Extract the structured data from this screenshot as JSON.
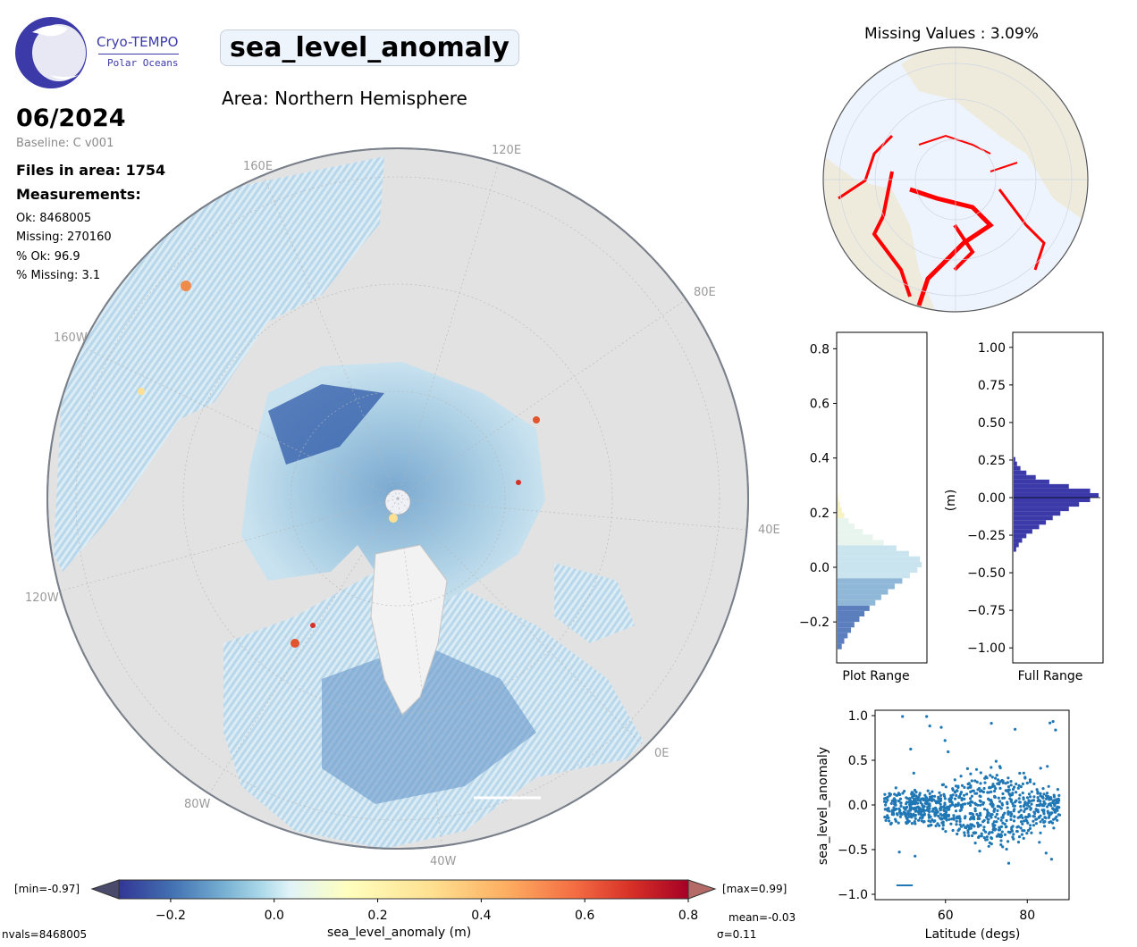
{
  "logo": {
    "line1": "Cryo-TEMPO",
    "line2": "Polar Oceans"
  },
  "title": "sea_level_anomaly",
  "area": "Area: Northern Hemisphere",
  "date": "06/2024",
  "baseline": "Baseline: C v001",
  "files": "Files in area: 1754",
  "measurements_heading": "Measurements:",
  "stats": {
    "ok": "Ok: 8468005",
    "missing": "Missing: 270160",
    "pct_ok": "% Ok: 96.9",
    "pct_missing": "% Missing: 3.1"
  },
  "map": {
    "lon_labels": [
      "120E",
      "160E",
      "80E",
      "160W",
      "40E",
      "120W",
      "0E",
      "80W",
      "40W"
    ],
    "colors": {
      "land": "#e6e6e6",
      "ocean_low": "#313695",
      "ocean_mid": "#abd9e9",
      "ocean_high": "#fee090",
      "hot": "#d73027"
    }
  },
  "inset": {
    "title": "Missing Values : 3.09%",
    "land_color": "#efebdc",
    "ocean_color": "#eef4fd",
    "missing_color": "#ff0000"
  },
  "colorbar": {
    "min_label": "[min=-0.97]",
    "max_label": "[max=0.99]",
    "label": "sea_level_anomaly (m)",
    "ticks": [
      "−0.2",
      "0.0",
      "0.2",
      "0.4",
      "0.6",
      "0.8"
    ],
    "range": [
      -0.3,
      0.8
    ],
    "mean": "mean=-0.03",
    "sigma": "σ=0.11",
    "nvals": "nvals=8468005"
  },
  "chart_data": [
    {
      "type": "bar",
      "orientation": "horizontal",
      "xlabel": "Plot Range",
      "ylim": [
        -0.35,
        0.86
      ],
      "yticks": [
        "−0.2",
        "0.0",
        "0.2",
        "0.4",
        "0.6",
        "0.8"
      ],
      "bins": [
        -0.3,
        -0.28,
        -0.26,
        -0.24,
        -0.22,
        -0.2,
        -0.18,
        -0.16,
        -0.14,
        -0.12,
        -0.1,
        -0.08,
        -0.06,
        -0.04,
        -0.02,
        0.0,
        0.02,
        0.04,
        0.06,
        0.08,
        0.1,
        0.12,
        0.14,
        0.16,
        0.18,
        0.2,
        0.22,
        0.24
      ],
      "values": [
        0.05,
        0.08,
        0.12,
        0.16,
        0.2,
        0.26,
        0.32,
        0.38,
        0.45,
        0.52,
        0.6,
        0.68,
        0.77,
        0.86,
        0.95,
        1.0,
        0.98,
        0.85,
        0.7,
        0.55,
        0.42,
        0.3,
        0.2,
        0.13,
        0.08,
        0.05,
        0.03,
        0.01
      ]
    },
    {
      "type": "bar",
      "orientation": "horizontal",
      "xlabel": "Full Range",
      "ylabel": "(m)",
      "ylim": [
        -1.1,
        1.1
      ],
      "yticks": [
        "1.00",
        "0.75",
        "0.50",
        "0.25",
        "0.00",
        "−0.25",
        "−0.50",
        "−0.75",
        "−1.00"
      ],
      "bins": [
        -0.36,
        -0.33,
        -0.3,
        -0.27,
        -0.24,
        -0.21,
        -0.18,
        -0.15,
        -0.12,
        -0.09,
        -0.06,
        -0.03,
        0.0,
        0.03,
        0.06,
        0.09,
        0.12,
        0.15,
        0.18,
        0.21,
        0.24
      ],
      "values": [
        0.03,
        0.06,
        0.1,
        0.15,
        0.22,
        0.3,
        0.38,
        0.46,
        0.55,
        0.65,
        0.77,
        0.9,
        1.0,
        0.9,
        0.65,
        0.42,
        0.26,
        0.15,
        0.08,
        0.04,
        0.02
      ]
    },
    {
      "type": "scatter",
      "xlabel": "Latitude (degs)",
      "ylabel": "sea_level_anomaly",
      "xlim": [
        43,
        90
      ],
      "ylim": [
        -1.05,
        1.05
      ],
      "xticks": [
        "60",
        "80"
      ],
      "yticks": [
        "1.0",
        "0.5",
        "0.0",
        "−0.5",
        "−1.0"
      ],
      "color": "#1f77b4"
    }
  ]
}
